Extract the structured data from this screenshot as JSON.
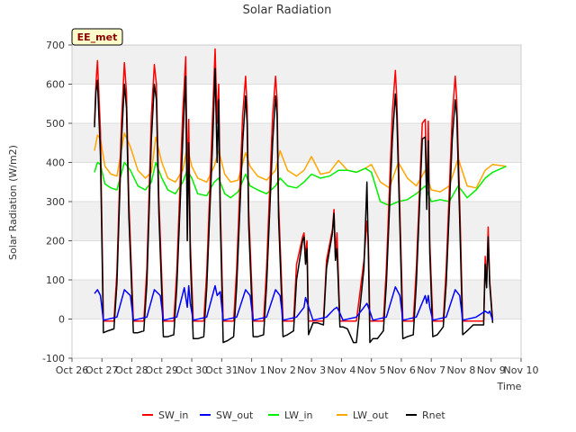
{
  "chart_data": {
    "type": "line",
    "title": "Solar Radiation",
    "xlabel": "Time",
    "ylabel": "Solar Radiation (W/m2)",
    "badge": "EE_met",
    "ylim": [
      -100,
      700
    ],
    "yticks": [
      -100,
      0,
      100,
      200,
      300,
      400,
      500,
      600,
      700
    ],
    "xlim": [
      0,
      15
    ],
    "xtick_labels": [
      "Oct 26",
      "Oct 27",
      "Oct 28",
      "Oct 29",
      "Oct 30",
      "Oct 31",
      "Nov 1",
      "Nov 2",
      "Nov 3",
      "Nov 4",
      "Nov 5",
      "Nov 6",
      "Nov 7",
      "Nov 8",
      "Nov 9",
      "Nov 10"
    ],
    "x_units": "days since Oct 26",
    "grid": true,
    "legend_position": "bottom",
    "colors": {
      "SW_in": "#ff0000",
      "SW_out": "#0000ff",
      "LW_in": "#00ee00",
      "LW_out": "#ffa500",
      "Rnet": "#000000"
    },
    "series": [
      {
        "name": "SW_in",
        "x": [
          0.75,
          0.8,
          0.85,
          0.95,
          1.05,
          1.2,
          1.4,
          1.5,
          1.65,
          1.75,
          1.82,
          1.9,
          2.05,
          2.2,
          2.4,
          2.5,
          2.65,
          2.75,
          2.82,
          2.9,
          3.05,
          3.2,
          3.4,
          3.5,
          3.7,
          3.8,
          3.85,
          3.9,
          3.95,
          4.05,
          4.2,
          4.4,
          4.5,
          4.7,
          4.78,
          4.85,
          4.9,
          4.95,
          5.05,
          5.2,
          5.4,
          5.5,
          5.7,
          5.8,
          5.85,
          5.9,
          6.05,
          6.2,
          6.4,
          6.5,
          6.7,
          6.8,
          6.85,
          6.9,
          7.05,
          7.2,
          7.4,
          7.5,
          7.7,
          7.75,
          7.8,
          7.85,
          7.9,
          8.05,
          8.2,
          8.4,
          8.5,
          8.7,
          8.75,
          8.8,
          8.85,
          8.95,
          9.05,
          9.2,
          9.4,
          9.5,
          9.75,
          9.85,
          9.9,
          9.95,
          10.05,
          10.2,
          10.4,
          10.5,
          10.7,
          10.8,
          10.85,
          10.95,
          11.05,
          11.2,
          11.4,
          11.5,
          11.7,
          11.8,
          11.85,
          11.9,
          11.95,
          12.05,
          12.2,
          12.4,
          12.5,
          12.7,
          12.8,
          12.85,
          12.95,
          13.05,
          13.2,
          13.4,
          13.5,
          13.75,
          13.8,
          13.85,
          13.9,
          13.95,
          14.05
        ],
        "y": [
          500,
          600,
          660,
          480,
          -5,
          -5,
          -5,
          120,
          500,
          655,
          580,
          300,
          -5,
          -5,
          -5,
          130,
          520,
          650,
          600,
          310,
          -5,
          -5,
          -5,
          120,
          530,
          670,
          350,
          510,
          200,
          -5,
          -5,
          -5,
          120,
          530,
          690,
          500,
          600,
          300,
          -5,
          -5,
          -5,
          130,
          520,
          620,
          540,
          280,
          -5,
          -5,
          -5,
          130,
          520,
          620,
          560,
          300,
          -5,
          -5,
          -5,
          140,
          210,
          220,
          160,
          200,
          -5,
          -5,
          -5,
          -5,
          150,
          230,
          280,
          160,
          220,
          -5,
          -5,
          -5,
          -5,
          -5,
          150,
          250,
          200,
          -5,
          -5,
          -5,
          -5,
          130,
          530,
          635,
          560,
          280,
          -5,
          -5,
          -5,
          130,
          500,
          510,
          300,
          505,
          200,
          -5,
          -5,
          -5,
          130,
          520,
          620,
          560,
          300,
          -5,
          -5,
          -5,
          -5,
          -5,
          160,
          90,
          235,
          100,
          -5
        ]
      },
      {
        "name": "SW_out",
        "x": [
          0.75,
          0.85,
          0.95,
          1.05,
          1.5,
          1.75,
          1.95,
          2.05,
          2.5,
          2.75,
          2.95,
          3.05,
          3.5,
          3.75,
          3.85,
          3.9,
          3.95,
          4.05,
          4.5,
          4.78,
          4.85,
          4.95,
          5.05,
          5.5,
          5.8,
          5.95,
          6.05,
          6.5,
          6.8,
          6.95,
          7.05,
          7.5,
          7.75,
          7.8,
          7.95,
          8.05,
          8.5,
          8.75,
          8.85,
          8.95,
          9.05,
          9.5,
          9.75,
          9.85,
          9.95,
          10.05,
          10.5,
          10.8,
          10.95,
          11.05,
          11.5,
          11.8,
          11.85,
          11.9,
          11.95,
          12.05,
          12.5,
          12.8,
          12.95,
          13.05,
          13.5,
          13.8,
          13.9,
          13.95,
          14.05
        ],
        "y": [
          65,
          75,
          60,
          -3,
          5,
          75,
          60,
          -3,
          5,
          75,
          60,
          -3,
          5,
          80,
          30,
          85,
          40,
          -3,
          5,
          85,
          60,
          70,
          -3,
          5,
          75,
          60,
          -3,
          5,
          75,
          60,
          -3,
          5,
          30,
          55,
          20,
          -3,
          5,
          25,
          30,
          15,
          -3,
          5,
          30,
          40,
          20,
          -3,
          5,
          82,
          60,
          -3,
          5,
          60,
          40,
          60,
          30,
          -3,
          5,
          75,
          60,
          -3,
          5,
          20,
          15,
          20,
          -3
        ]
      },
      {
        "name": "LW_in",
        "x": [
          0.75,
          0.85,
          0.95,
          1.1,
          1.3,
          1.5,
          1.75,
          1.95,
          2.2,
          2.45,
          2.65,
          2.8,
          3.0,
          3.2,
          3.45,
          3.7,
          3.85,
          4.0,
          4.2,
          4.5,
          4.75,
          4.9,
          5.1,
          5.3,
          5.55,
          5.8,
          5.95,
          6.2,
          6.5,
          6.8,
          6.95,
          7.2,
          7.5,
          7.75,
          8.0,
          8.3,
          8.6,
          8.9,
          9.2,
          9.5,
          9.8,
          10.0,
          10.3,
          10.6,
          10.9,
          11.2,
          11.5,
          11.8,
          12.0,
          12.3,
          12.6,
          12.9,
          13.2,
          13.5,
          13.8,
          14.05,
          14.5
        ],
        "y": [
          375,
          400,
          395,
          345,
          335,
          330,
          400,
          380,
          340,
          330,
          350,
          400,
          360,
          330,
          320,
          350,
          380,
          360,
          320,
          315,
          350,
          360,
          320,
          310,
          325,
          370,
          340,
          330,
          320,
          340,
          360,
          340,
          335,
          350,
          370,
          360,
          365,
          380,
          380,
          375,
          385,
          375,
          300,
          290,
          300,
          305,
          320,
          340,
          300,
          305,
          300,
          340,
          310,
          330,
          360,
          375,
          390
        ]
      },
      {
        "name": "LW_out",
        "x": [
          0.75,
          0.85,
          0.95,
          1.1,
          1.3,
          1.5,
          1.75,
          1.95,
          2.2,
          2.45,
          2.65,
          2.8,
          3.0,
          3.2,
          3.45,
          3.7,
          3.85,
          4.0,
          4.2,
          4.5,
          4.75,
          4.9,
          5.1,
          5.3,
          5.55,
          5.8,
          5.95,
          6.2,
          6.5,
          6.8,
          6.95,
          7.2,
          7.5,
          7.75,
          8.0,
          8.3,
          8.6,
          8.9,
          9.2,
          9.5,
          9.8,
          10.0,
          10.3,
          10.6,
          10.9,
          11.2,
          11.5,
          11.8,
          12.0,
          12.3,
          12.6,
          12.9,
          13.2,
          13.5,
          13.8,
          14.05,
          14.5
        ],
        "y": [
          430,
          470,
          460,
          390,
          370,
          365,
          475,
          440,
          380,
          360,
          375,
          465,
          400,
          360,
          350,
          380,
          440,
          390,
          360,
          350,
          390,
          430,
          370,
          350,
          355,
          425,
          390,
          365,
          355,
          380,
          430,
          380,
          365,
          380,
          415,
          370,
          375,
          405,
          380,
          375,
          385,
          395,
          350,
          335,
          400,
          360,
          340,
          380,
          330,
          325,
          340,
          410,
          340,
          335,
          380,
          395,
          390
        ]
      },
      {
        "name": "Rnet",
        "x": [
          0.75,
          0.8,
          0.85,
          0.95,
          1.05,
          1.2,
          1.4,
          1.5,
          1.65,
          1.75,
          1.82,
          1.9,
          2.05,
          2.2,
          2.4,
          2.5,
          2.65,
          2.75,
          2.82,
          2.9,
          3.05,
          3.2,
          3.4,
          3.5,
          3.7,
          3.8,
          3.85,
          3.9,
          3.95,
          4.05,
          4.2,
          4.4,
          4.5,
          4.7,
          4.78,
          4.85,
          4.9,
          4.95,
          5.05,
          5.2,
          5.4,
          5.5,
          5.7,
          5.8,
          5.85,
          5.9,
          6.05,
          6.2,
          6.4,
          6.5,
          6.7,
          6.8,
          6.85,
          6.9,
          7.05,
          7.2,
          7.4,
          7.5,
          7.7,
          7.75,
          7.8,
          7.85,
          7.9,
          8.05,
          8.2,
          8.4,
          8.5,
          8.7,
          8.75,
          8.8,
          8.85,
          8.95,
          9.05,
          9.2,
          9.4,
          9.5,
          9.75,
          9.85,
          9.9,
          9.95,
          10.05,
          10.2,
          10.4,
          10.5,
          10.7,
          10.8,
          10.85,
          10.95,
          11.05,
          11.2,
          11.4,
          11.5,
          11.7,
          11.8,
          11.85,
          11.9,
          11.95,
          12.05,
          12.2,
          12.4,
          12.5,
          12.7,
          12.8,
          12.85,
          12.95,
          13.05,
          13.2,
          13.4,
          13.5,
          13.75,
          13.8,
          13.85,
          13.9,
          13.95,
          14.05
        ],
        "y": [
          490,
          580,
          610,
          420,
          -35,
          -30,
          -25,
          90,
          450,
          600,
          540,
          260,
          -35,
          -35,
          -30,
          90,
          460,
          600,
          560,
          270,
          -45,
          -45,
          -40,
          80,
          460,
          620,
          200,
          450,
          160,
          -50,
          -50,
          -45,
          80,
          460,
          640,
          400,
          560,
          260,
          -60,
          -55,
          -45,
          85,
          450,
          570,
          500,
          240,
          -45,
          -45,
          -40,
          85,
          450,
          570,
          520,
          260,
          -45,
          -40,
          -30,
          100,
          200,
          210,
          140,
          180,
          -40,
          -10,
          -10,
          -15,
          130,
          220,
          270,
          150,
          180,
          -20,
          -20,
          -25,
          -60,
          -60,
          130,
          350,
          170,
          -60,
          -50,
          -50,
          -30,
          90,
          460,
          575,
          520,
          240,
          -50,
          -45,
          -40,
          90,
          460,
          465,
          280,
          455,
          170,
          -45,
          -40,
          -20,
          90,
          460,
          560,
          520,
          250,
          -40,
          -30,
          -15,
          -15,
          -15,
          140,
          80,
          210,
          90,
          -10
        ]
      }
    ]
  }
}
